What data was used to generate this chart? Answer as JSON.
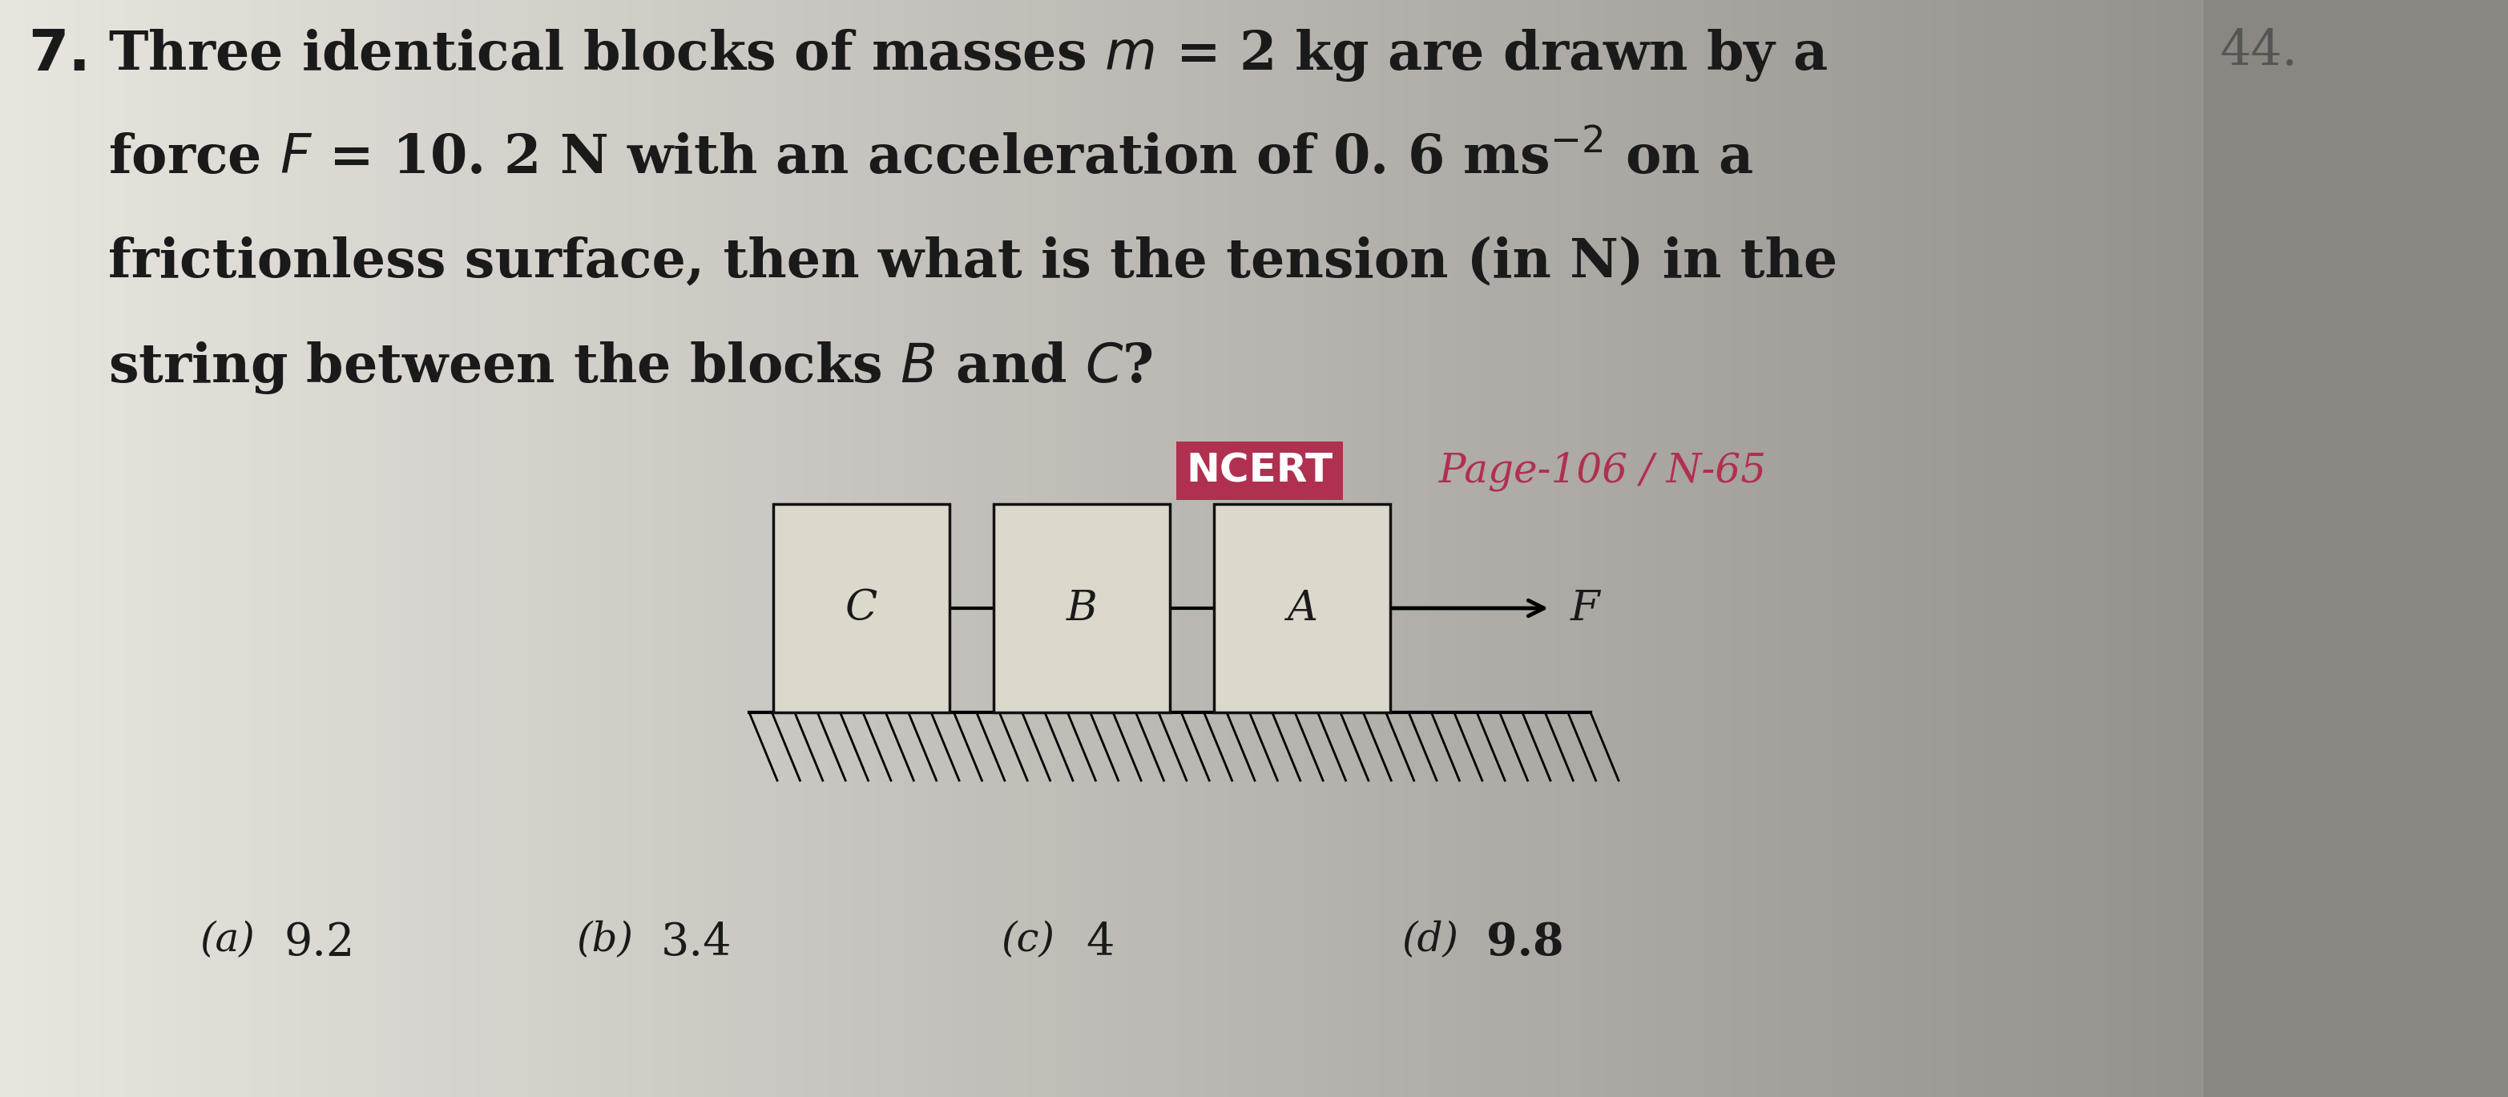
{
  "bg_color_left": "#e8e4de",
  "bg_color_right": "#b0aca6",
  "bg_color_mid": "#cdc8c0",
  "right_shadow_color": "#888480",
  "title_num": "7.",
  "main_text_lines": [
    "Three identical blocks of masses $m$ = 2 kg are drawn by a",
    "force $F$ = 10. 2 N with an acceleration of 0. 6 ms$^{-2}$ on a",
    "frictionless surface, then what is the tension (in N) in the",
    "string between the blocks $B$ and $C$?"
  ],
  "ncert_label": "NCERT",
  "ncert_bg": "#b03050",
  "page_label": " Page-106 / N-65",
  "page_color": "#b03050",
  "block_labels": [
    "C",
    "B",
    "A"
  ],
  "force_label": "F",
  "answer_options": [
    {
      "label": "(a)",
      "value": "9.2"
    },
    {
      "label": "(b)",
      "value": "3.4"
    },
    {
      "label": "(c)",
      "value": "4"
    },
    {
      "label": "(d)",
      "value": "9.8"
    }
  ],
  "last_num": "44.",
  "text_color": "#1a1a1a",
  "block_face_color": "#ddd8cc",
  "block_edge_color": "#111111",
  "surface_color": "#111111",
  "hatch_color": "#111111"
}
